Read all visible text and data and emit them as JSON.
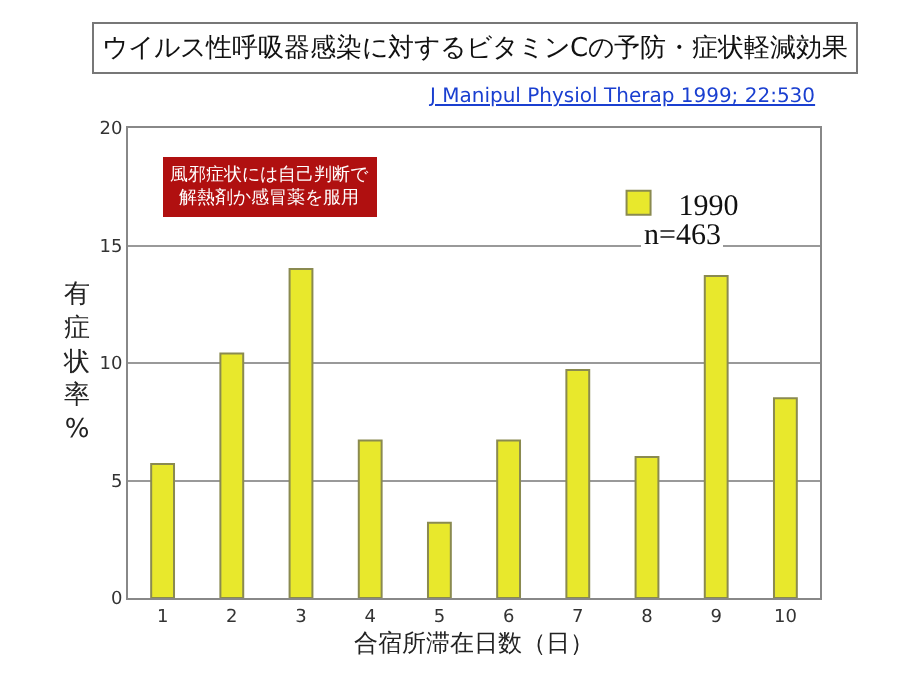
{
  "chart_data": {
    "type": "bar",
    "title": "ウイルス性呼吸器感染に対するビタミンCの予防・症状軽減効果",
    "xlabel": "合宿所滞在日数（日）",
    "ylabel": "有症状率%",
    "categories": [
      "1",
      "2",
      "3",
      "4",
      "5",
      "6",
      "7",
      "8",
      "9",
      "10"
    ],
    "series": [
      {
        "name": "1990",
        "color": "#e8e82c",
        "values": [
          5.7,
          10.4,
          14.0,
          6.7,
          3.2,
          6.7,
          9.7,
          6.0,
          13.7,
          8.5
        ]
      }
    ],
    "ylim": [
      0,
      20
    ],
    "yticks": [
      0,
      5,
      10,
      15,
      20
    ],
    "grid": "y",
    "legend": "top right",
    "annotations": [
      "J Manipul Physiol Therap 1999; 22:530",
      "風邪症状には自己判断で解熱剤か感冒薬を服用",
      "n=463"
    ]
  }
}
